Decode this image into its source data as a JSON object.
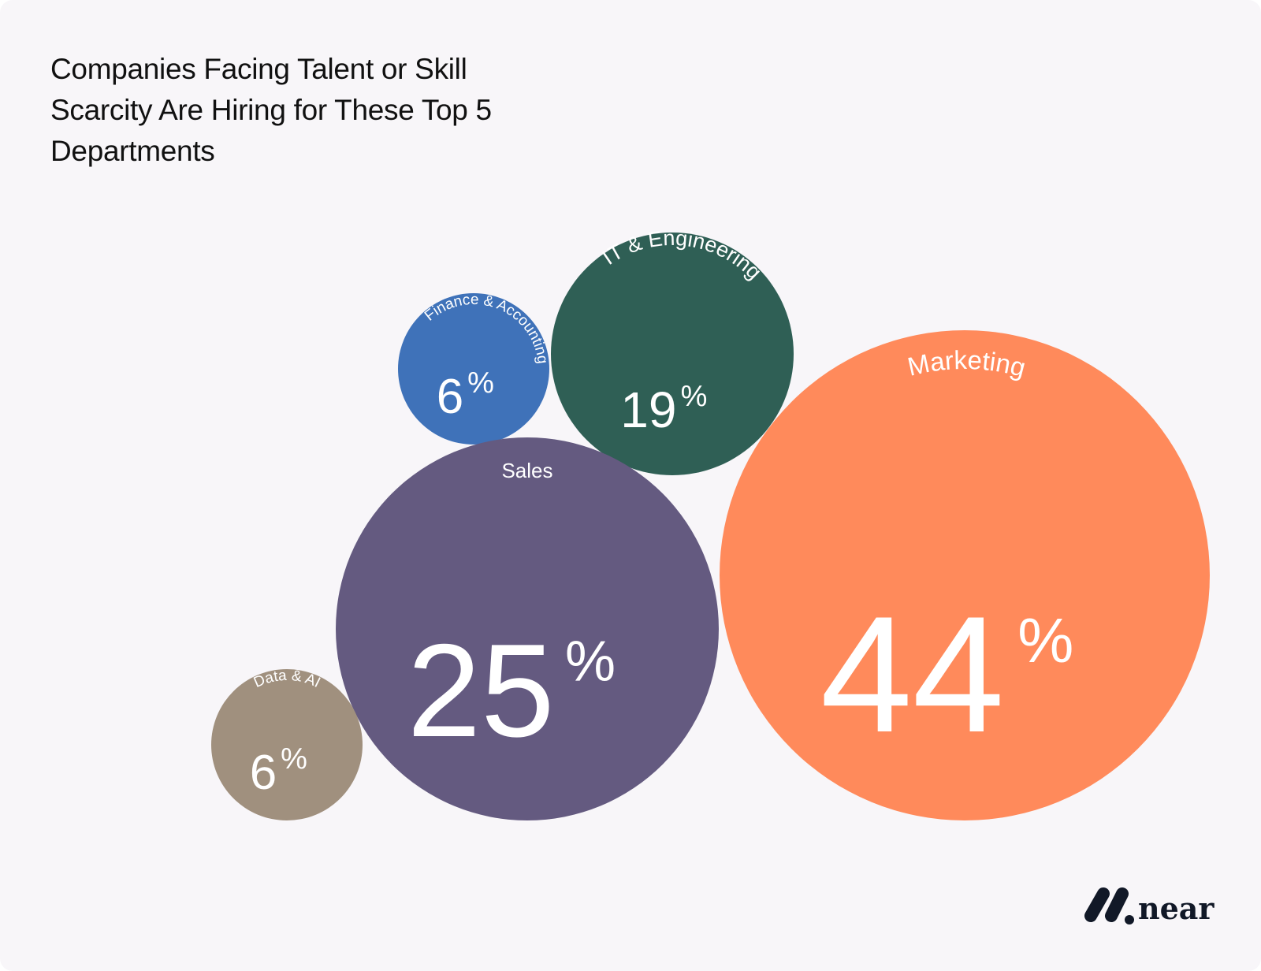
{
  "chart_data": {
    "type": "bubble",
    "title": "Companies Facing Talent or Skill Scarcity Are Hiring for These Top 5 Departments",
    "unit": "%",
    "series": [
      {
        "name": "Finance & Accounting",
        "value": 6,
        "color": "#3f72b9"
      },
      {
        "name": "IT & Engineering",
        "value": 19,
        "color": "#2f5f55"
      },
      {
        "name": "Marketing",
        "value": 44,
        "color": "#ff8a5b"
      },
      {
        "name": "Sales",
        "value": 25,
        "color": "#645a80"
      },
      {
        "name": "Data & AI",
        "value": 6,
        "color": "#a0907e"
      }
    ]
  },
  "brand": {
    "name": "near",
    "color": "#111827"
  }
}
